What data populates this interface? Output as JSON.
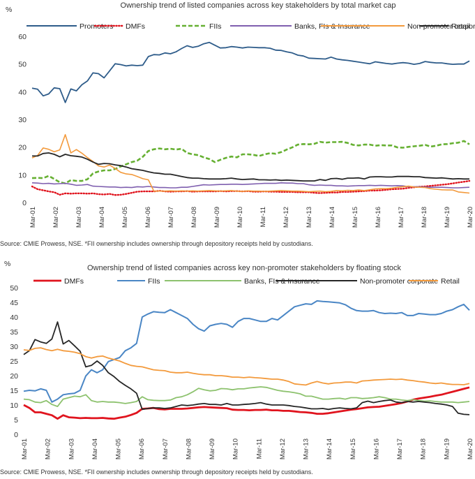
{
  "chart_data": [
    {
      "type": "line",
      "title": "Ownership trend of listed companies across key stakeholders by total market cap",
      "unit_label": "%",
      "source": "Source: CMIE Prowess, NSE. *FII ownership includes ownership through depository receipts held by custodians.",
      "x_labels": [
        "Mar-01",
        "Mar-02",
        "Mar-03",
        "Mar-04",
        "Mar-05",
        "Mar-06",
        "Mar-07",
        "Mar-08",
        "Mar-09",
        "Mar-10",
        "Mar-11",
        "Mar-12",
        "Mar-13",
        "Mar-14",
        "Mar-15",
        "Mar-16",
        "Mar-17",
        "Mar-18",
        "Mar-19",
        "Mar-20"
      ],
      "ylim": [
        0,
        60
      ],
      "yticks": [
        0,
        10,
        20,
        30,
        40,
        50,
        60
      ],
      "grid": false,
      "legend": "top",
      "series": [
        {
          "name": "Promoters",
          "color": "#2E5C8A",
          "style": "solid",
          "width": 1.8,
          "values": [
            41.3,
            40.9,
            38.5,
            39.2,
            41.4,
            41.1,
            36.1,
            41.0,
            40.3,
            42.5,
            43.9,
            46.8,
            46.5,
            45.0,
            47.5,
            50.1,
            49.8,
            49.3,
            49.6,
            49.4,
            49.6,
            52.7,
            53.4,
            53.3,
            54.0,
            53.7,
            54.4,
            55.6,
            56.6,
            56.0,
            56.4,
            57.3,
            57.8,
            56.8,
            55.8,
            55.9,
            56.3,
            56.1,
            55.8,
            56.1,
            56.0,
            55.9,
            55.9,
            55.7,
            55.0,
            54.9,
            54.4,
            54.0,
            53.2,
            52.9,
            52.1,
            52.0,
            51.9,
            51.8,
            52.5,
            51.8,
            51.5,
            51.3,
            51.0,
            50.7,
            50.4,
            50.1,
            50.8,
            50.5,
            50.2,
            50.0,
            50.3,
            50.5,
            50.3,
            49.9,
            50.2,
            50.9,
            50.6,
            50.4,
            50.4,
            50.1,
            49.9,
            50.0,
            50.0,
            51.1
          ]
        },
        {
          "name": "DMFs",
          "color": "#E0141E",
          "style": "dotted",
          "width": 2.4,
          "values": [
            5.8,
            4.8,
            4.4,
            4.0,
            3.7,
            2.8,
            3.3,
            3.2,
            3.3,
            3.3,
            3.2,
            3.3,
            3.0,
            2.9,
            3.1,
            2.7,
            2.8,
            3.1,
            3.5,
            3.9,
            4.0,
            4.0,
            4.0,
            4.2,
            4.0,
            3.9,
            4.0,
            4.0,
            4.1,
            3.9,
            4.0,
            4.0,
            4.0,
            4.0,
            4.1,
            4.0,
            4.1,
            4.1,
            4.0,
            4.1,
            3.9,
            3.9,
            4.0,
            3.9,
            3.9,
            3.8,
            3.8,
            3.8,
            3.7,
            3.7,
            3.7,
            3.5,
            3.4,
            3.5,
            3.6,
            3.6,
            3.8,
            3.8,
            3.9,
            4.0,
            4.1,
            4.3,
            4.3,
            4.4,
            4.6,
            4.8,
            4.9,
            5.0,
            5.3,
            5.5,
            5.7,
            5.8,
            6.0,
            6.2,
            6.4,
            6.6,
            6.9,
            7.2,
            7.5,
            7.8
          ]
        },
        {
          "name": "FIIs",
          "color": "#66B032",
          "style": "dashed",
          "width": 2.6,
          "values": [
            8.8,
            8.9,
            8.8,
            9.6,
            8.5,
            7.3,
            6.9,
            8.1,
            7.8,
            7.8,
            8.4,
            10.5,
            11.2,
            11.6,
            11.6,
            12.1,
            13.0,
            13.8,
            14.6,
            15.1,
            16.5,
            18.6,
            19.2,
            19.5,
            19.2,
            19.4,
            19.1,
            19.4,
            17.9,
            17.4,
            17.1,
            16.3,
            15.7,
            14.6,
            15.4,
            16.1,
            16.6,
            16.3,
            17.4,
            17.4,
            17.2,
            16.8,
            17.4,
            17.8,
            17.6,
            18.2,
            19.1,
            19.9,
            20.9,
            21.1,
            21.0,
            21.2,
            21.9,
            21.6,
            21.8,
            21.8,
            21.9,
            21.5,
            20.8,
            20.6,
            20.9,
            20.9,
            20.5,
            20.7,
            20.6,
            20.6,
            19.9,
            19.8,
            20.1,
            20.3,
            20.5,
            20.8,
            20.2,
            20.5,
            21.0,
            21.1,
            21.4,
            21.6,
            22.2,
            21.0
          ]
        },
        {
          "name": "Banks, FIs & Insurance",
          "color": "#7F5FAF",
          "style": "solid",
          "width": 1.6,
          "values": [
            7.1,
            7.0,
            6.8,
            6.9,
            6.7,
            6.8,
            6.9,
            6.6,
            6.2,
            6.3,
            6.5,
            5.9,
            5.8,
            5.7,
            5.6,
            5.6,
            5.4,
            5.5,
            5.4,
            5.7,
            5.6,
            5.8,
            5.6,
            5.4,
            5.4,
            5.3,
            5.3,
            5.5,
            5.5,
            5.8,
            6.1,
            6.4,
            6.3,
            6.4,
            6.5,
            6.5,
            6.6,
            6.6,
            6.5,
            6.6,
            6.7,
            6.8,
            6.9,
            6.9,
            6.9,
            7.1,
            7.0,
            7.0,
            6.8,
            6.8,
            6.4,
            6.2,
            6.3,
            6.2,
            6.2,
            6.0,
            6.0,
            5.9,
            6.0,
            6.1,
            6.1,
            6.2,
            6.1,
            6.2,
            6.1,
            6.0,
            6.1,
            6.0,
            5.7,
            5.7,
            5.7,
            5.6,
            5.5,
            5.5,
            5.5,
            5.4,
            5.3,
            5.3,
            5.4,
            5.5
          ]
        },
        {
          "name": "Non-promoter corporate",
          "color": "#F39A3C",
          "style": "solid",
          "width": 1.6,
          "values": [
            16.1,
            17.0,
            19.7,
            19.2,
            18.3,
            19.0,
            24.5,
            17.9,
            19.1,
            17.8,
            16.2,
            14.8,
            13.2,
            12.8,
            13.5,
            12.3,
            10.9,
            10.3,
            10.1,
            9.4,
            8.6,
            8.2,
            4.1,
            4.1,
            4.1,
            4.2,
            4.1,
            4.2,
            4.1,
            4.2,
            4.1,
            4.2,
            4.3,
            4.2,
            4.1,
            4.2,
            4.3,
            4.1,
            4.0,
            4.2,
            4.1,
            4.1,
            4.0,
            4.1,
            4.2,
            4.3,
            4.2,
            4.1,
            4.1,
            4.0,
            3.9,
            4.0,
            4.1,
            3.9,
            4.0,
            4.3,
            4.2,
            4.4,
            4.3,
            4.5,
            4.3,
            4.6,
            4.9,
            5.0,
            5.0,
            5.2,
            5.5,
            5.7,
            5.9,
            5.6,
            5.5,
            5.4,
            5.0,
            4.8,
            4.6,
            4.5,
            4.5,
            3.8,
            3.6,
            3.4
          ]
        },
        {
          "name": "Retail",
          "color": "#262626",
          "style": "solid",
          "width": 1.8,
          "values": [
            16.8,
            16.8,
            17.7,
            17.9,
            17.4,
            16.5,
            17.4,
            16.9,
            16.7,
            16.4,
            15.6,
            14.6,
            13.8,
            14.1,
            14.0,
            13.6,
            13.3,
            12.8,
            12.2,
            11.9,
            11.6,
            11.1,
            10.7,
            10.5,
            10.2,
            10.2,
            9.8,
            9.4,
            9.0,
            8.8,
            8.8,
            8.6,
            8.5,
            8.5,
            8.5,
            8.6,
            8.8,
            8.5,
            8.3,
            8.4,
            8.5,
            8.2,
            8.2,
            8.1,
            8.2,
            8.0,
            8.1,
            8.0,
            7.9,
            7.8,
            7.8,
            7.8,
            8.3,
            8.0,
            8.6,
            8.7,
            8.4,
            8.8,
            8.8,
            8.9,
            8.5,
            9.2,
            9.3,
            9.3,
            9.2,
            9.2,
            9.4,
            9.4,
            9.4,
            9.3,
            9.3,
            9.0,
            8.9,
            8.8,
            8.9,
            8.7,
            8.5,
            8.6,
            8.5,
            8.5
          ]
        }
      ]
    },
    {
      "type": "line",
      "title": "Ownership trend of listed companies across key non-promoter stakeholders by floating stock",
      "unit_label": "%",
      "source": "Source: CMIE Prowess, NSE. *FII ownership includes ownership through depository receipts held by custodians.",
      "x_labels": [
        "Mar-01",
        "Mar-02",
        "Mar-03",
        "Mar-04",
        "Mar-05",
        "Mar-06",
        "Mar-07",
        "Mar-08",
        "Mar-09",
        "Mar-10",
        "Mar-11",
        "Mar-12",
        "Mar-13",
        "Mar-14",
        "Mar-15",
        "Mar-16",
        "Mar-17",
        "Mar-18",
        "Mar-19",
        "Mar-20"
      ],
      "ylim": [
        0,
        50
      ],
      "yticks": [
        0,
        5,
        10,
        15,
        20,
        25,
        30,
        35,
        40,
        45,
        50
      ],
      "grid": false,
      "legend": "top",
      "series": [
        {
          "name": "DMFs",
          "color": "#E0141E",
          "style": "solid",
          "width": 2.8,
          "values": [
            10.0,
            9.0,
            7.5,
            7.5,
            7.0,
            6.5,
            5.3,
            6.5,
            5.8,
            5.7,
            5.5,
            5.6,
            5.5,
            5.5,
            5.6,
            5.4,
            5.3,
            5.7,
            6.0,
            6.6,
            7.3,
            8.7,
            8.8,
            9.0,
            8.6,
            8.5,
            8.7,
            8.7,
            8.7,
            8.8,
            9.0,
            9.2,
            9.3,
            9.2,
            9.1,
            9.0,
            8.9,
            8.4,
            8.3,
            8.3,
            8.2,
            8.3,
            8.3,
            8.4,
            8.2,
            8.2,
            8.0,
            8.0,
            7.8,
            7.6,
            7.5,
            7.3,
            7.0,
            7.0,
            7.2,
            7.5,
            7.8,
            8.1,
            8.4,
            8.6,
            8.9,
            9.2,
            9.3,
            9.4,
            9.7,
            10.0,
            10.3,
            10.7,
            11.2,
            11.8,
            12.2,
            12.5,
            12.8,
            13.2,
            13.5,
            14.0,
            14.5,
            15.0,
            15.5,
            16.0
          ]
        },
        {
          "name": "FIIs",
          "color": "#4A86C5",
          "style": "solid",
          "width": 2.0,
          "values": [
            14.7,
            15.0,
            14.8,
            15.5,
            15.0,
            11.0,
            12.0,
            13.5,
            13.8,
            14.0,
            15.0,
            19.9,
            22.0,
            21.0,
            22.0,
            24.8,
            25.5,
            26.2,
            28.5,
            29.5,
            31.0,
            40.0,
            41.0,
            41.8,
            41.6,
            41.5,
            42.5,
            41.5,
            40.5,
            39.5,
            37.5,
            36.0,
            35.2,
            37.0,
            37.5,
            37.8,
            37.5,
            36.5,
            38.5,
            39.5,
            39.5,
            39.0,
            38.5,
            38.5,
            39.5,
            39.0,
            40.5,
            42.0,
            43.5,
            44.0,
            44.5,
            44.3,
            45.5,
            45.3,
            45.2,
            45.0,
            44.8,
            44.2,
            43.0,
            42.2,
            42.0,
            42.0,
            42.2,
            41.5,
            41.2,
            41.3,
            41.2,
            41.5,
            40.5,
            40.5,
            41.2,
            41.0,
            40.8,
            40.8,
            41.2,
            42.0,
            42.5,
            43.5,
            44.3,
            42.3
          ]
        },
        {
          "name": "Banks, FIs & Insurance",
          "color": "#8DC26E",
          "style": "solid",
          "width": 1.8,
          "values": [
            12.0,
            11.8,
            11.0,
            10.8,
            11.5,
            10.2,
            9.5,
            12.0,
            12.5,
            13.0,
            12.8,
            13.5,
            11.5,
            11.0,
            11.2,
            11.0,
            11.0,
            10.8,
            10.5,
            10.8,
            11.2,
            12.8,
            11.8,
            11.6,
            11.5,
            11.5,
            11.7,
            12.5,
            12.8,
            13.5,
            14.5,
            15.7,
            15.2,
            14.8,
            15.0,
            15.6,
            15.5,
            15.2,
            15.5,
            15.5,
            15.8,
            16.0,
            16.2,
            16.0,
            15.5,
            15.0,
            14.7,
            14.5,
            14.2,
            13.8,
            13.0,
            13.0,
            12.5,
            12.0,
            12.0,
            12.2,
            12.3,
            12.0,
            12.5,
            12.5,
            12.2,
            12.3,
            12.5,
            12.8,
            12.5,
            12.0,
            12.0,
            11.7,
            11.5,
            11.8,
            11.5,
            11.3,
            11.4,
            11.2,
            11.0,
            11.0,
            11.0,
            10.8,
            11.0,
            11.2
          ]
        },
        {
          "name": "Non-promoter corporate",
          "color": "#262626",
          "style": "solid",
          "width": 1.8,
          "values": [
            27.2,
            28.5,
            32.3,
            31.5,
            31.0,
            32.5,
            38.3,
            30.8,
            32.0,
            30.2,
            28.3,
            23.0,
            23.5,
            25.0,
            23.5,
            21.0,
            19.7,
            18.0,
            16.7,
            15.5,
            14.0,
            8.5,
            8.8,
            9.0,
            9.0,
            8.8,
            9.0,
            9.5,
            10.0,
            9.8,
            10.0,
            10.3,
            10.5,
            10.2,
            10.2,
            10.0,
            10.5,
            10.0,
            10.0,
            10.2,
            10.3,
            10.5,
            10.8,
            10.3,
            10.0,
            10.0,
            10.0,
            9.8,
            9.5,
            9.3,
            9.0,
            8.7,
            8.7,
            8.8,
            8.5,
            8.8,
            9.0,
            8.8,
            8.7,
            9.0,
            10.8,
            11.3,
            10.8,
            11.2,
            11.5,
            11.7,
            11.0,
            10.8,
            11.2,
            11.0,
            11.2,
            11.0,
            10.8,
            10.5,
            10.3,
            10.0,
            9.5,
            7.2,
            6.8,
            6.7
          ]
        },
        {
          "name": "Retail",
          "color": "#F39A3C",
          "style": "solid",
          "width": 1.8,
          "values": [
            28.8,
            28.6,
            29.3,
            29.5,
            28.9,
            28.5,
            29.0,
            28.5,
            28.3,
            28.0,
            27.5,
            26.5,
            26.0,
            26.5,
            26.7,
            26.0,
            25.5,
            25.0,
            24.2,
            23.5,
            23.2,
            23.0,
            22.5,
            22.0,
            21.8,
            21.7,
            21.2,
            21.0,
            21.0,
            21.2,
            20.8,
            20.5,
            20.3,
            20.3,
            20.0,
            20.0,
            19.8,
            19.5,
            19.5,
            19.3,
            19.5,
            19.3,
            19.2,
            19.0,
            18.8,
            18.8,
            18.5,
            18.0,
            17.2,
            17.0,
            16.8,
            17.5,
            18.0,
            17.5,
            17.2,
            17.5,
            17.6,
            17.8,
            17.8,
            17.5,
            18.2,
            18.3,
            18.5,
            18.6,
            18.7,
            18.8,
            18.7,
            18.8,
            18.5,
            18.3,
            18.0,
            17.8,
            17.5,
            17.3,
            17.5,
            17.2,
            17.0,
            17.0,
            16.9,
            17.3
          ]
        }
      ]
    }
  ]
}
